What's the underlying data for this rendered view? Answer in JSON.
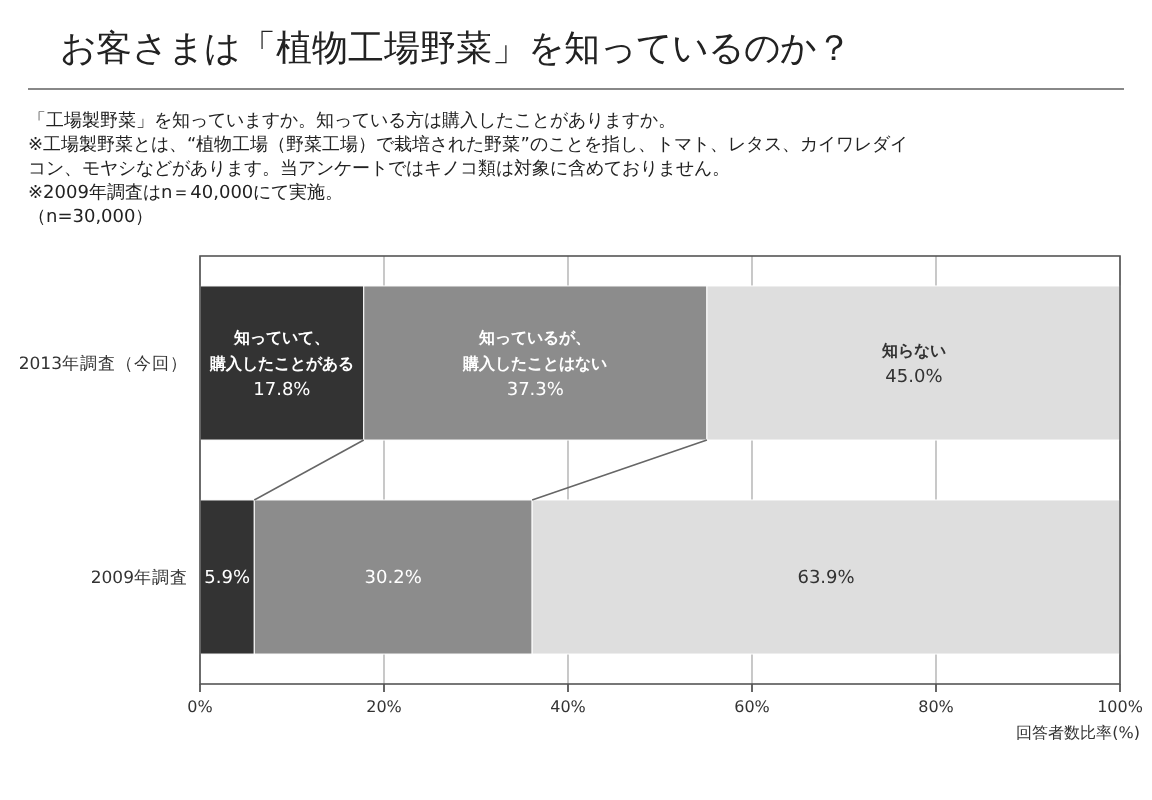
{
  "chart_data": {
    "type": "bar",
    "orientation": "horizontal",
    "stacked": true,
    "title": "お客さまは「植物工場野菜」を知っているのか？",
    "subtitle": "「工場製野菜」を知っていますか。知っている方は購入したことがありますか。",
    "annotations": [
      "※工場製野菜とは、“植物工場（野菜工場）で栽培された野菜”のことを指し、トマト、レタス、カイワレダイコン、モヤシなどがあります。当アンケートではキノコ類は対象に含めておりません。",
      "※2009年調査はn＝40,000にて実施。",
      "（n=30,000）"
    ],
    "xlabel": "回答者数比率(%)",
    "categories": [
      "2013年調査（今回）",
      "2009年調査"
    ],
    "series": [
      {
        "name": "知っていて、購入したことがある",
        "color": "#333333",
        "values": [
          17.8,
          5.9
        ],
        "value_labels": [
          "17.8%",
          "5.9%"
        ]
      },
      {
        "name": "知っているが、購入したことはない",
        "color": "#8c8c8c",
        "values": [
          37.3,
          30.2
        ],
        "value_labels": [
          "37.3%",
          "30.2%"
        ]
      },
      {
        "name": "知らない",
        "color": "#dedede",
        "values": [
          45.0,
          63.9
        ],
        "value_labels": [
          "45.0%",
          "63.9%"
        ]
      }
    ],
    "xlim": [
      0,
      100
    ],
    "xticks": [
      {
        "value": 0,
        "label": "0%"
      },
      {
        "value": 20,
        "label": "20%"
      },
      {
        "value": 40,
        "label": "40%"
      },
      {
        "value": 60,
        "label": "60%"
      },
      {
        "value": 80,
        "label": "80%"
      },
      {
        "value": 100,
        "label": "100%"
      }
    ],
    "grid": "x",
    "legend": false
  }
}
